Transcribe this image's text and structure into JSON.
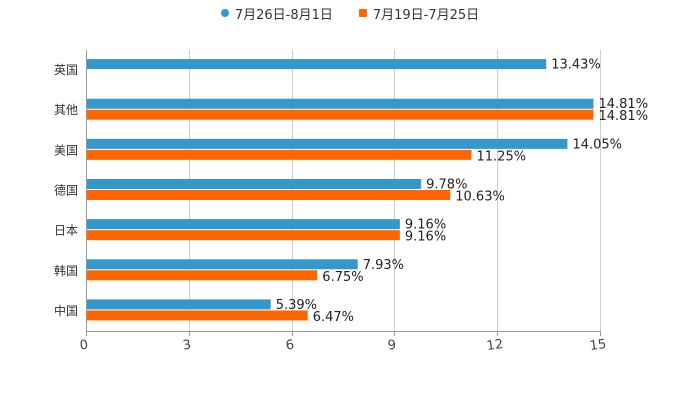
{
  "legend": {
    "series_a": "7月26日-8月1日",
    "series_b": "7月19日-7月25日"
  },
  "colors": {
    "series_a": "#3399cc",
    "series_b": "#ff6600",
    "grid": "#cccccc",
    "axis": "#999999"
  },
  "chart_data": {
    "type": "bar",
    "orientation": "horizontal",
    "title": "",
    "xlabel": "",
    "ylabel": "",
    "categories": [
      "英国",
      "其他",
      "美国",
      "德国",
      "日本",
      "韩国",
      "中国"
    ],
    "series": [
      {
        "name": "7月26日-8月1日",
        "values": [
          13.43,
          14.81,
          14.05,
          9.78,
          9.16,
          7.93,
          5.39
        ],
        "labels": [
          "13.43%",
          "14.81%",
          "14.05%",
          "9.78%",
          "9.16%",
          "7.93%",
          "5.39%"
        ]
      },
      {
        "name": "7月19日-7月25日",
        "values": [
          null,
          14.81,
          11.25,
          10.63,
          9.16,
          6.75,
          6.47
        ],
        "labels": [
          "",
          "14.81%",
          "11.25%",
          "10.63%",
          "9.16%",
          "6.75%",
          "6.47%"
        ]
      }
    ],
    "xlim": [
      0,
      15
    ],
    "xticks": [
      "0",
      "3",
      "6",
      "9",
      "12",
      "15"
    ],
    "grid": true,
    "legend_position": "top"
  }
}
